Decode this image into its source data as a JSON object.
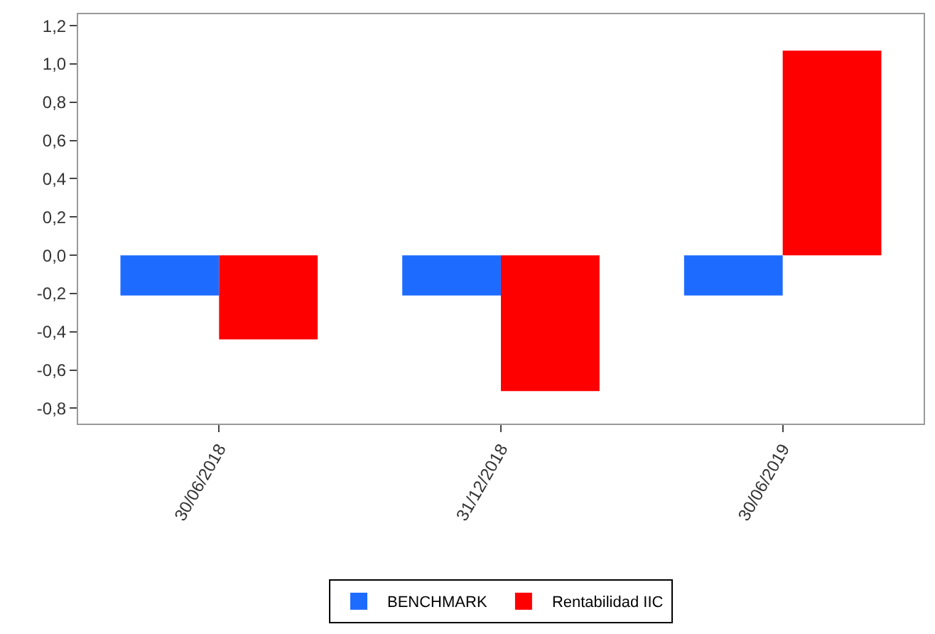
{
  "chart_data": {
    "type": "bar",
    "categories": [
      "30/06/2018",
      "31/12/2018",
      "30/06/2019"
    ],
    "series": [
      {
        "name": "BENCHMARK",
        "color": "#1e6cff",
        "values": [
          -0.21,
          -0.21,
          -0.21
        ]
      },
      {
        "name": "Rentabilidad IIC",
        "color": "#ff0000",
        "values": [
          -0.44,
          -0.71,
          1.07
        ]
      }
    ],
    "ylim": [
      -0.88,
      1.26
    ],
    "yticks": [
      {
        "value": -0.8,
        "label": "-0,8"
      },
      {
        "value": -0.6,
        "label": "-0,6"
      },
      {
        "value": -0.4,
        "label": "-0,4"
      },
      {
        "value": -0.2,
        "label": "-0,2"
      },
      {
        "value": 0,
        "label": "0,0"
      },
      {
        "value": 0.2,
        "label": "0,2"
      },
      {
        "value": 0.4,
        "label": "0,4"
      },
      {
        "value": 0.6,
        "label": "0,6"
      },
      {
        "value": 0.8,
        "label": "0,8"
      },
      {
        "value": 1.0,
        "label": "1,0"
      },
      {
        "value": 1.2,
        "label": "1,2"
      }
    ],
    "grid": false,
    "legend": "bottom"
  }
}
